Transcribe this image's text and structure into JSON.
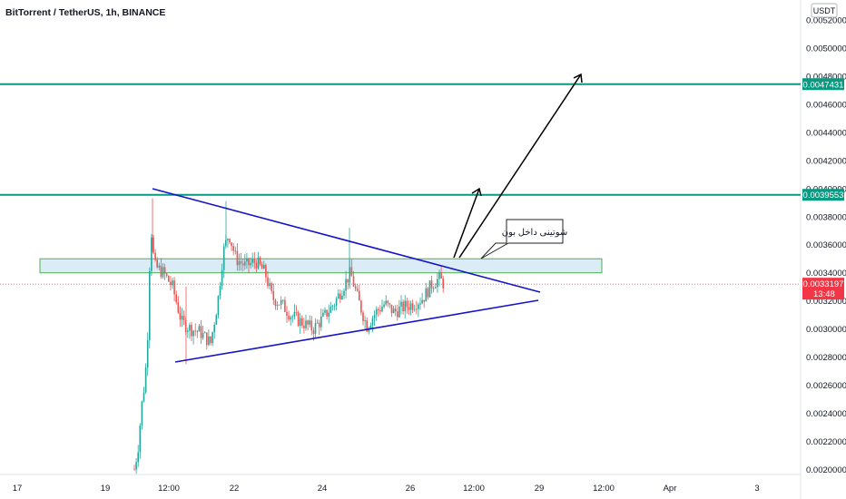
{
  "header": {
    "title": "BitTorrent / TetherUS, 1h, BINANCE",
    "currency": "USDT"
  },
  "chart_data": {
    "type": "candlestick",
    "title": "BitTorrent / TetherUS, 1h, BINANCE",
    "y_axis": {
      "ticks": [
        "0.0020000",
        "0.0022000",
        "0.0024000",
        "0.0026000",
        "0.0028000",
        "0.0030000",
        "0.0032000",
        "0.0034000",
        "0.0036000",
        "0.0038000",
        "0.0040000",
        "0.0042000",
        "0.0044000",
        "0.0046000",
        "0.0048000",
        "0.0050000",
        "0.0052000"
      ],
      "ylim": [
        0.00199,
        0.00531
      ]
    },
    "x_axis": {
      "labels": [
        "17",
        "19",
        "12:00",
        "22",
        "24",
        "26",
        "12:00",
        "29",
        "12:00",
        "Apr",
        "3"
      ]
    },
    "levels": [
      {
        "value": 0.0047431,
        "label": "0.0047431",
        "color": "#089981"
      },
      {
        "value": 0.0039553,
        "label": "0.0039553",
        "color": "#089981"
      }
    ],
    "current_price": {
      "value": 0.0033197,
      "label": "0.0033197",
      "countdown": "13:48",
      "color": "#f23645"
    },
    "zone": {
      "low": 0.0034,
      "high": 0.0035
    },
    "annotation": {
      "text": "شوتینی داخل بون"
    },
    "colors": {
      "up": "#26a69a",
      "down": "#ef5350",
      "trend": "#1414c8",
      "level": "#089981"
    }
  }
}
